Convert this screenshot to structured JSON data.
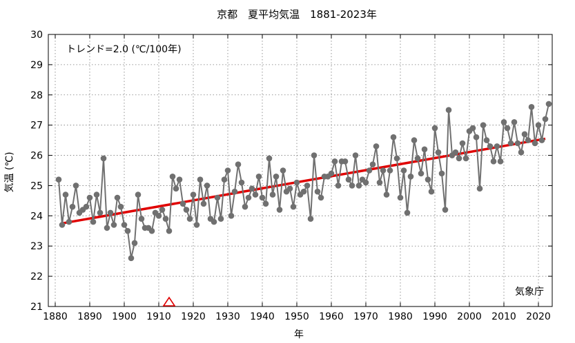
{
  "chart_data": {
    "type": "line",
    "title": "京都　夏平均気温　1881-2023年",
    "xlabel": "年",
    "ylabel": "気温 (℃)",
    "xlim": [
      1878,
      2024
    ],
    "ylim": [
      21,
      30
    ],
    "xticks": [
      1880,
      1890,
      1900,
      1910,
      1920,
      1930,
      1940,
      1950,
      1960,
      1970,
      1980,
      1990,
      2000,
      2010,
      2020
    ],
    "yticks": [
      21,
      22,
      23,
      24,
      25,
      26,
      27,
      28,
      29,
      30
    ],
    "grid": true,
    "trend_text": "トレンド=2.0 (℃/100年)",
    "credit": "気象庁",
    "trend": {
      "x": [
        1882,
        2022
      ],
      "y": [
        23.75,
        26.55
      ],
      "color": "#e00000"
    },
    "series_color": "#707070",
    "marker": {
      "x": 1913,
      "y": 21,
      "color": "#e00000",
      "meaning": "station relocation"
    },
    "series": [
      {
        "start_year": 1881,
        "values": [
          25.2,
          23.7,
          24.7,
          23.8,
          24.3,
          25.0,
          24.1,
          24.2,
          24.3,
          24.6,
          23.8,
          24.7,
          24.1,
          25.9,
          23.6,
          24.1,
          23.7,
          24.6,
          24.3,
          23.7,
          23.5,
          22.6,
          23.1,
          24.7,
          23.9,
          23.6,
          23.6,
          23.5,
          24.1,
          24.0,
          24.2,
          23.9,
          23.5,
          25.3,
          24.9,
          25.2,
          24.4,
          24.2,
          23.9,
          24.7,
          23.7,
          25.2,
          24.4,
          25.0,
          23.9,
          23.8,
          24.6,
          23.9,
          25.2,
          25.5,
          24.0,
          24.8,
          25.7,
          25.1,
          24.3,
          24.6,
          24.9,
          24.7,
          25.3,
          24.6,
          24.4,
          25.9,
          24.7,
          25.3,
          24.2,
          25.5,
          24.8,
          24.9,
          24.3,
          25.1,
          24.7,
          24.8,
          25.0,
          23.9,
          26.0,
          24.8,
          24.6,
          25.3,
          25.3,
          25.4,
          25.8,
          25.0,
          25.8,
          25.8,
          25.2,
          25.0,
          26.0,
          25.0,
          25.2,
          25.1,
          25.5,
          25.7,
          26.3,
          25.1,
          25.5,
          24.7,
          25.5,
          26.6,
          25.9,
          24.6,
          25.5,
          24.1,
          25.3,
          26.5,
          25.9,
          25.4,
          26.2,
          25.2,
          24.8,
          26.9,
          26.1,
          25.4,
          24.2,
          27.5,
          26.0,
          26.1,
          25.9,
          26.4,
          25.9,
          26.8,
          26.9,
          26.6,
          24.9,
          27.0,
          26.5,
          26.3,
          25.8,
          26.3,
          25.8,
          27.1,
          26.9,
          26.4,
          27.1,
          26.4,
          26.1,
          26.7,
          26.5,
          27.6,
          26.4,
          27.0,
          26.5,
          27.2,
          27.7
        ]
      }
    ]
  }
}
